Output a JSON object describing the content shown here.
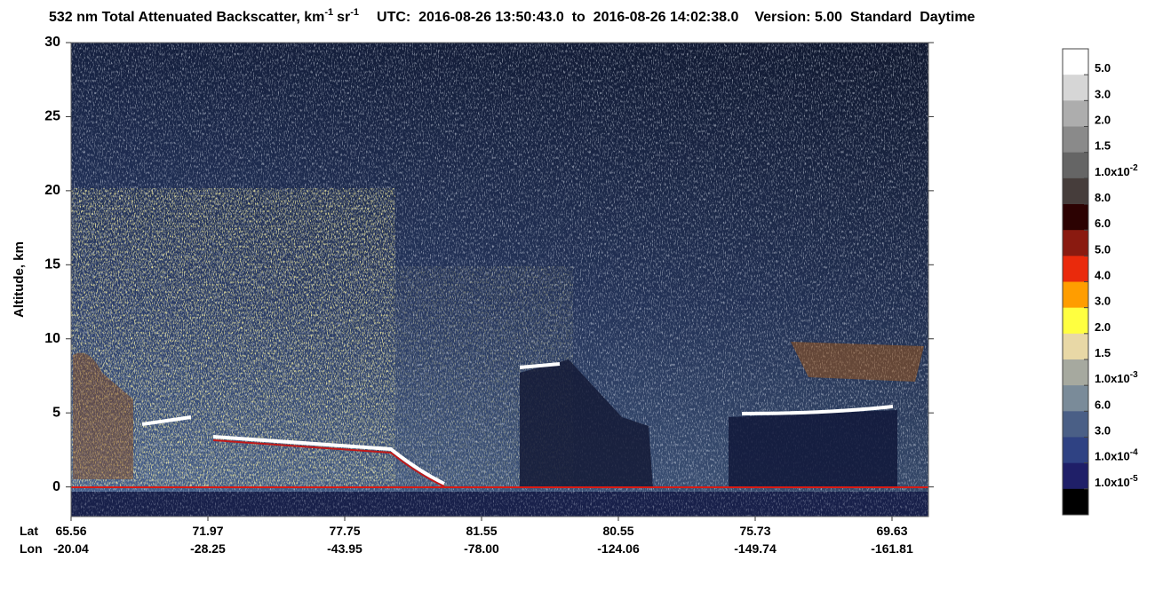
{
  "chart_data": {
    "type": "heatmap",
    "title": {
      "product": "532 nm Total Attenuated Backscatter, km",
      "unit_exp": "-1",
      "unit2": "sr",
      "unit2_exp": "-1",
      "utc": "UTC:  2016-08-26 13:50:43.0  to  2016-08-26 14:02:38.0",
      "version": "Version: 5.00  Standard  Daytime"
    },
    "ylabel": "Altitude, km",
    "ylim": [
      -2,
      30
    ],
    "yticks": [
      0,
      5,
      10,
      15,
      20,
      25,
      30
    ],
    "x_row_labels": [
      "Lat",
      "Lon"
    ],
    "lat": [
      "65.56",
      "71.97",
      "77.75",
      "81.55",
      "80.55",
      "75.73",
      "69.63"
    ],
    "lon": [
      "-20.04",
      "-28.25",
      "-43.95",
      "-78.00",
      "-124.06",
      "-149.74",
      "-161.81"
    ],
    "colorbar": {
      "colors": [
        "#ffffff",
        "#d6d6d6",
        "#adadad",
        "#8a8a8a",
        "#656565",
        "#463d3b",
        "#2c0202",
        "#8a1a10",
        "#ea2a0c",
        "#ff9d00",
        "#ffff40",
        "#e8d8a6",
        "#a6a99f",
        "#7a8b99",
        "#4a5f86",
        "#2f4283",
        "#1f1f68",
        "#000000"
      ],
      "labels": [
        {
          "text": "5.0"
        },
        {
          "text": "3.0"
        },
        {
          "text": "2.0"
        },
        {
          "text": "1.5"
        },
        {
          "text": "1.0x10",
          "sup": "-2"
        },
        {
          "text": "8.0"
        },
        {
          "text": "6.0"
        },
        {
          "text": "5.0"
        },
        {
          "text": "4.0"
        },
        {
          "text": "3.0"
        },
        {
          "text": "2.0"
        },
        {
          "text": "1.5"
        },
        {
          "text": "1.0x10",
          "sup": "-3"
        },
        {
          "text": "6.0"
        },
        {
          "text": "3.0"
        },
        {
          "text": "1.0x10",
          "sup": "-4"
        },
        {
          "text": "1.0x10",
          "sup": "-5"
        }
      ]
    }
  }
}
